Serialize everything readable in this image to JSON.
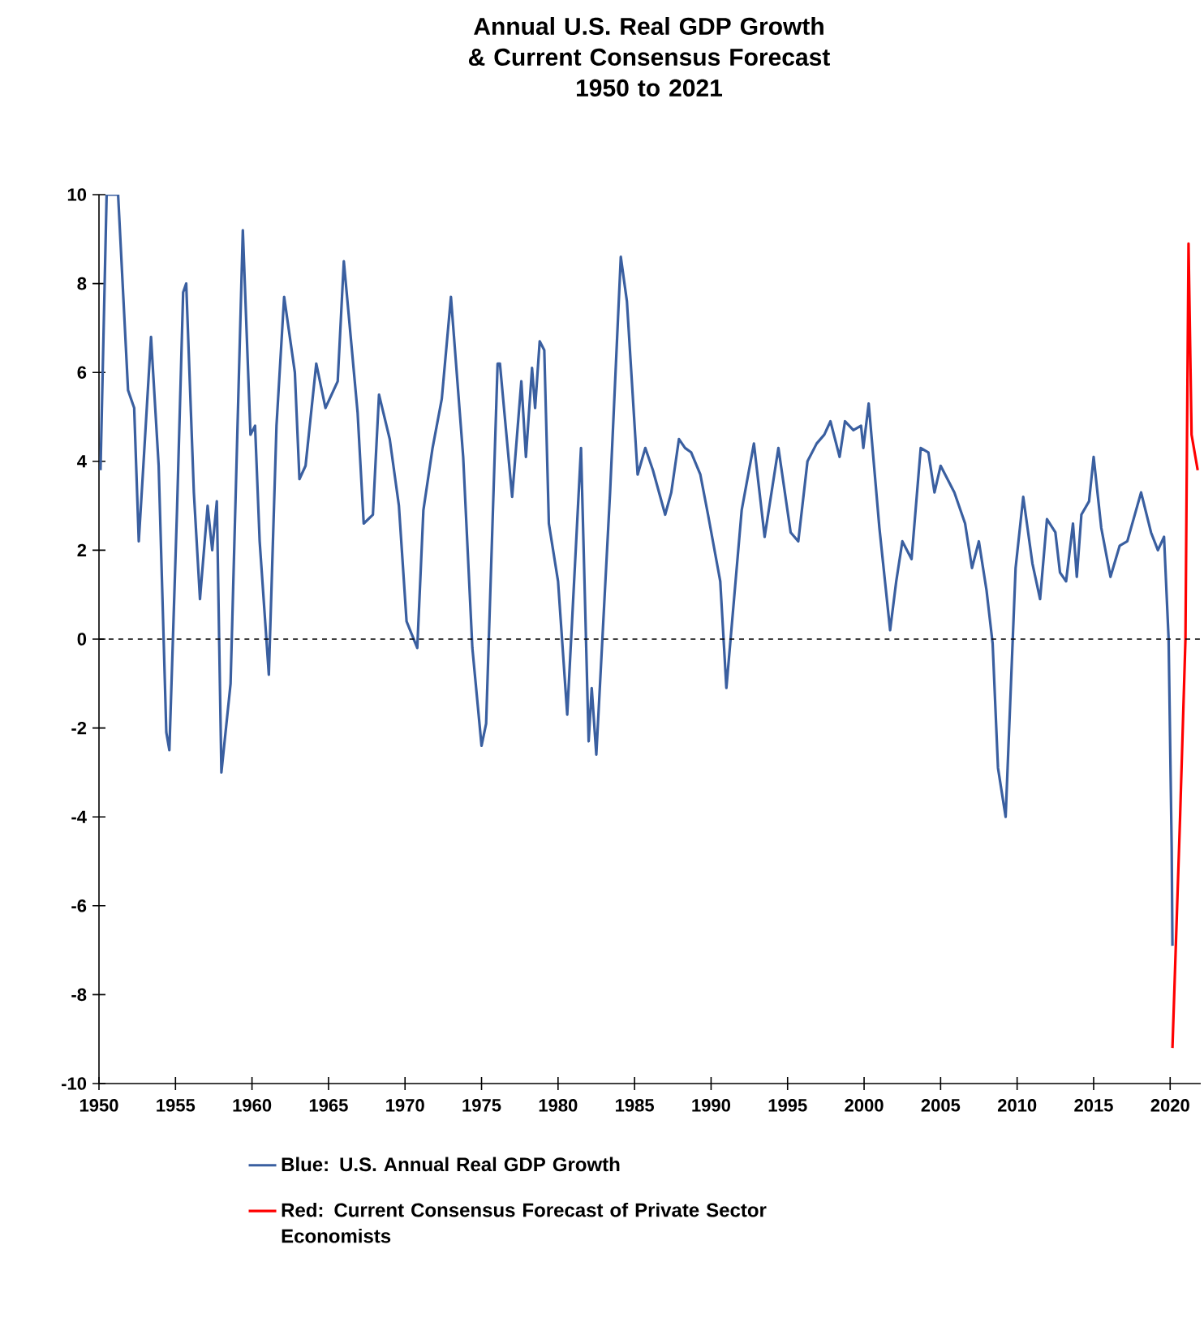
{
  "chart_data": {
    "type": "line",
    "title": "Annual U.S. Real GDP Growth & Current Consensus Forecast",
    "subtitle": "1950 to 2021",
    "xlim": [
      1950,
      2022
    ],
    "xticks": [
      1950,
      1955,
      1960,
      1965,
      1970,
      1975,
      1980,
      1985,
      1990,
      1995,
      2000,
      2005,
      2010,
      2015,
      2020
    ],
    "ylim": [
      -10,
      10
    ],
    "yticks": [
      -10,
      -8,
      -6,
      -4,
      -2,
      0,
      2,
      4,
      6,
      8,
      10
    ],
    "legend": "bottom",
    "marker": "none",
    "line_style": "solid",
    "ref_lines": [
      {
        "axis": "y",
        "value": 0,
        "color": "#000000",
        "line_style": "dashed"
      }
    ],
    "series": [
      {
        "name": "Blue: U.S. Annual Real GDP Growth",
        "color": "#3a5fa0",
        "x": [
          1950.1,
          1950.5,
          1951.25,
          1951.9,
          1952.3,
          1952.6,
          1952.9,
          1953.4,
          1953.9,
          1954.4,
          1954.6,
          1955.1,
          1955.5,
          1955.7,
          1956.2,
          1956.6,
          1957.1,
          1957.4,
          1957.7,
          1958.0,
          1958.6,
          1959.4,
          1959.9,
          1960.2,
          1960.5,
          1961.1,
          1961.6,
          1962.1,
          1962.8,
          1963.1,
          1963.5,
          1964.2,
          1964.8,
          1965.6,
          1966.0,
          1966.9,
          1967.3,
          1967.9,
          1968.3,
          1969.0,
          1969.6,
          1970.1,
          1970.8,
          1971.2,
          1971.8,
          1972.4,
          1973.0,
          1973.8,
          1974.4,
          1975.0,
          1975.3,
          1976.05,
          1976.2,
          1977.0,
          1977.6,
          1977.9,
          1978.3,
          1978.5,
          1978.8,
          1979.1,
          1979.4,
          1980.0,
          1980.6,
          1981.5,
          1982.0,
          1982.2,
          1982.5,
          1983.4,
          1984.1,
          1984.5,
          1985.2,
          1985.7,
          1986.2,
          1987.0,
          1987.4,
          1987.9,
          1988.3,
          1988.7,
          1989.3,
          1989.8,
          1990.6,
          1991.0,
          1992.0,
          1992.8,
          1993.5,
          1994.4,
          1995.2,
          1995.7,
          1996.3,
          1996.9,
          1997.4,
          1997.8,
          1998.4,
          1998.75,
          1999.3,
          1999.8,
          1999.95,
          2000.3,
          2001.0,
          2001.7,
          2002.1,
          2002.5,
          2003.1,
          2003.7,
          2004.2,
          2004.6,
          2005.0,
          2005.9,
          2006.6,
          2007.05,
          2007.5,
          2008.0,
          2008.4,
          2008.75,
          2009.25,
          2009.9,
          2010.4,
          2011.0,
          2011.5,
          2011.95,
          2012.5,
          2012.8,
          2013.2,
          2013.65,
          2013.9,
          2014.2,
          2014.7,
          2015.0,
          2015.5,
          2016.1,
          2016.7,
          2017.2,
          2018.1,
          2018.75,
          2019.2,
          2019.6,
          2019.9,
          2020.1,
          2020.15
        ],
        "values": [
          3.8,
          10,
          10,
          5.6,
          5.2,
          2.2,
          3.9,
          6.8,
          3.9,
          -2.1,
          -2.5,
          2.9,
          7.8,
          8.0,
          3.3,
          0.9,
          3.0,
          2.0,
          3.1,
          -3.0,
          -1.0,
          9.2,
          4.6,
          4.8,
          2.2,
          -0.8,
          4.8,
          7.7,
          6.0,
          3.6,
          3.9,
          6.2,
          5.2,
          5.8,
          8.5,
          5.1,
          2.6,
          2.8,
          5.5,
          4.5,
          3.0,
          0.4,
          -0.2,
          2.9,
          4.3,
          5.4,
          7.7,
          4.1,
          -0.2,
          -2.4,
          -1.9,
          6.2,
          6.2,
          3.2,
          5.8,
          4.1,
          6.1,
          5.2,
          6.7,
          6.5,
          2.6,
          1.3,
          -1.7,
          4.3,
          -2.3,
          -1.1,
          -2.6,
          3.3,
          8.6,
          7.6,
          3.7,
          4.3,
          3.8,
          2.8,
          3.3,
          4.5,
          4.3,
          4.2,
          3.7,
          2.8,
          1.3,
          -1.1,
          2.9,
          4.4,
          2.3,
          4.3,
          2.4,
          2.2,
          4.0,
          4.4,
          4.6,
          4.9,
          4.1,
          4.9,
          4.7,
          4.8,
          4.3,
          5.3,
          2.5,
          0.2,
          1.3,
          2.2,
          1.8,
          4.3,
          4.2,
          3.3,
          3.9,
          3.3,
          2.6,
          1.6,
          2.2,
          1.1,
          -0.1,
          -2.9,
          -4.0,
          1.6,
          3.2,
          1.7,
          0.9,
          2.7,
          2.4,
          1.5,
          1.3,
          2.6,
          1.4,
          2.8,
          3.1,
          4.1,
          2.5,
          1.4,
          2.1,
          2.2,
          3.3,
          2.4,
          2.0,
          2.3,
          0.0,
          -4.7,
          -6.9
        ]
      },
      {
        "name": "Red: Current Consensus Forecast of Private Sector Economists",
        "color": "#ff0000",
        "x": [
          2020.15,
          2020.65,
          2021.0,
          2021.2,
          2021.4,
          2021.8
        ],
        "values": [
          -9.2,
          -4.0,
          0.0,
          8.9,
          4.6,
          3.8
        ]
      }
    ]
  }
}
